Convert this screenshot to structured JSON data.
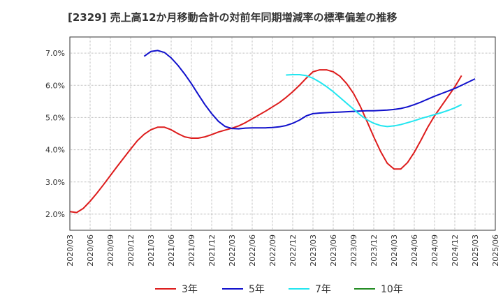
{
  "chart_data": {
    "type": "line",
    "title": "[2329]  売上高12か月移動合計の対前年同期増減率の標準偏差の推移",
    "xlabel": "",
    "ylabel": "",
    "x_ticks": [
      "2020/03",
      "2020/06",
      "2020/09",
      "2020/12",
      "2021/03",
      "2021/06",
      "2021/09",
      "2021/12",
      "2022/03",
      "2022/06",
      "2022/09",
      "2022/12",
      "2023/03",
      "2023/06",
      "2023/09",
      "2023/12",
      "2024/03",
      "2024/06",
      "2024/09",
      "2024/12",
      "2025/03",
      "2025/06"
    ],
    "y_ticks": [
      "2.0%",
      "3.0%",
      "4.0%",
      "5.0%",
      "6.0%",
      "7.0%"
    ],
    "ylim": [
      1.5,
      7.5
    ],
    "grid": true,
    "legend_position": "bottom",
    "series": [
      {
        "name": "3年",
        "color": "#dd1c1c",
        "points": [
          [
            "2020/03",
            2.08
          ],
          [
            "2020/04",
            2.05
          ],
          [
            "2020/05",
            2.18
          ],
          [
            "2020/06",
            2.4
          ],
          [
            "2020/07",
            2.65
          ],
          [
            "2020/08",
            2.92
          ],
          [
            "2020/09",
            3.2
          ],
          [
            "2020/10",
            3.48
          ],
          [
            "2020/11",
            3.75
          ],
          [
            "2020/12",
            4.02
          ],
          [
            "2021/01",
            4.28
          ],
          [
            "2021/02",
            4.48
          ],
          [
            "2021/03",
            4.62
          ],
          [
            "2021/04",
            4.7
          ],
          [
            "2021/05",
            4.7
          ],
          [
            "2021/06",
            4.62
          ],
          [
            "2021/07",
            4.5
          ],
          [
            "2021/08",
            4.4
          ],
          [
            "2021/09",
            4.36
          ],
          [
            "2021/10",
            4.36
          ],
          [
            "2021/11",
            4.4
          ],
          [
            "2021/12",
            4.47
          ],
          [
            "2022/01",
            4.55
          ],
          [
            "2022/02",
            4.61
          ],
          [
            "2022/03",
            4.67
          ],
          [
            "2022/04",
            4.74
          ],
          [
            "2022/05",
            4.84
          ],
          [
            "2022/06",
            4.96
          ],
          [
            "2022/07",
            5.08
          ],
          [
            "2022/08",
            5.2
          ],
          [
            "2022/09",
            5.33
          ],
          [
            "2022/10",
            5.46
          ],
          [
            "2022/11",
            5.62
          ],
          [
            "2022/12",
            5.8
          ],
          [
            "2023/01",
            6.0
          ],
          [
            "2023/02",
            6.22
          ],
          [
            "2023/03",
            6.42
          ],
          [
            "2023/04",
            6.48
          ],
          [
            "2023/05",
            6.48
          ],
          [
            "2023/06",
            6.42
          ],
          [
            "2023/07",
            6.28
          ],
          [
            "2023/08",
            6.05
          ],
          [
            "2023/09",
            5.75
          ],
          [
            "2023/10",
            5.35
          ],
          [
            "2023/11",
            4.88
          ],
          [
            "2023/12",
            4.4
          ],
          [
            "2024/01",
            3.95
          ],
          [
            "2024/02",
            3.58
          ],
          [
            "2024/03",
            3.4
          ],
          [
            "2024/04",
            3.4
          ],
          [
            "2024/05",
            3.6
          ],
          [
            "2024/06",
            3.92
          ],
          [
            "2024/07",
            4.3
          ],
          [
            "2024/08",
            4.7
          ],
          [
            "2024/09",
            5.05
          ],
          [
            "2024/10",
            5.35
          ],
          [
            "2024/11",
            5.65
          ],
          [
            "2024/12",
            5.95
          ],
          [
            "2025/01",
            6.3
          ]
        ]
      },
      {
        "name": "5年",
        "color": "#1010cc",
        "points": [
          [
            "2021/02",
            6.9
          ],
          [
            "2021/03",
            7.05
          ],
          [
            "2021/04",
            7.08
          ],
          [
            "2021/05",
            7.02
          ],
          [
            "2021/06",
            6.85
          ],
          [
            "2021/07",
            6.62
          ],
          [
            "2021/08",
            6.35
          ],
          [
            "2021/09",
            6.05
          ],
          [
            "2021/10",
            5.72
          ],
          [
            "2021/11",
            5.4
          ],
          [
            "2021/12",
            5.12
          ],
          [
            "2022/01",
            4.88
          ],
          [
            "2022/02",
            4.72
          ],
          [
            "2022/03",
            4.66
          ],
          [
            "2022/04",
            4.65
          ],
          [
            "2022/05",
            4.67
          ],
          [
            "2022/06",
            4.68
          ],
          [
            "2022/07",
            4.68
          ],
          [
            "2022/08",
            4.68
          ],
          [
            "2022/09",
            4.69
          ],
          [
            "2022/10",
            4.71
          ],
          [
            "2022/11",
            4.75
          ],
          [
            "2022/12",
            4.82
          ],
          [
            "2023/01",
            4.92
          ],
          [
            "2023/02",
            5.05
          ],
          [
            "2023/03",
            5.12
          ],
          [
            "2023/04",
            5.14
          ],
          [
            "2023/05",
            5.15
          ],
          [
            "2023/06",
            5.16
          ],
          [
            "2023/07",
            5.17
          ],
          [
            "2023/08",
            5.18
          ],
          [
            "2023/09",
            5.19
          ],
          [
            "2023/10",
            5.2
          ],
          [
            "2023/11",
            5.21
          ],
          [
            "2023/12",
            5.21
          ],
          [
            "2024/01",
            5.22
          ],
          [
            "2024/02",
            5.23
          ],
          [
            "2024/03",
            5.25
          ],
          [
            "2024/04",
            5.28
          ],
          [
            "2024/05",
            5.33
          ],
          [
            "2024/06",
            5.4
          ],
          [
            "2024/07",
            5.48
          ],
          [
            "2024/08",
            5.57
          ],
          [
            "2024/09",
            5.66
          ],
          [
            "2024/10",
            5.74
          ],
          [
            "2024/11",
            5.82
          ],
          [
            "2024/12",
            5.9
          ],
          [
            "2025/01",
            6.0
          ],
          [
            "2025/02",
            6.1
          ],
          [
            "2025/03",
            6.2
          ]
        ]
      },
      {
        "name": "7年",
        "color": "#22e6f0",
        "points": [
          [
            "2022/11",
            6.32
          ],
          [
            "2022/12",
            6.33
          ],
          [
            "2023/01",
            6.33
          ],
          [
            "2023/02",
            6.3
          ],
          [
            "2023/03",
            6.22
          ],
          [
            "2023/04",
            6.1
          ],
          [
            "2023/05",
            5.96
          ],
          [
            "2023/06",
            5.8
          ],
          [
            "2023/07",
            5.62
          ],
          [
            "2023/08",
            5.44
          ],
          [
            "2023/09",
            5.26
          ],
          [
            "2023/10",
            5.08
          ],
          [
            "2023/11",
            4.93
          ],
          [
            "2023/12",
            4.82
          ],
          [
            "2024/01",
            4.75
          ],
          [
            "2024/02",
            4.72
          ],
          [
            "2024/03",
            4.74
          ],
          [
            "2024/04",
            4.78
          ],
          [
            "2024/05",
            4.84
          ],
          [
            "2024/06",
            4.9
          ],
          [
            "2024/07",
            4.97
          ],
          [
            "2024/08",
            5.03
          ],
          [
            "2024/09",
            5.09
          ],
          [
            "2024/10",
            5.15
          ],
          [
            "2024/11",
            5.22
          ],
          [
            "2024/12",
            5.3
          ],
          [
            "2025/01",
            5.4
          ]
        ]
      },
      {
        "name": "10年",
        "color": "#228b22",
        "points": []
      }
    ]
  }
}
